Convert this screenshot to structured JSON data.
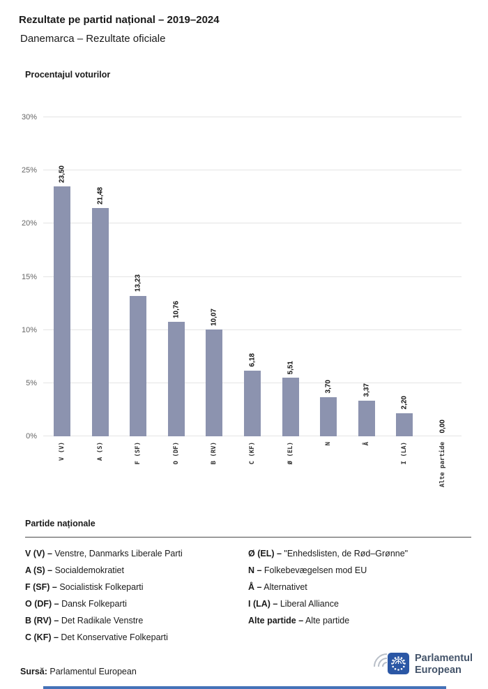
{
  "header": {
    "title": "Rezultate pe partid național – 2019–2024",
    "subtitle": "Danemarca – Rezultate oficiale"
  },
  "chart": {
    "heading": "Procentajul voturilor"
  },
  "chart_data": {
    "type": "bar",
    "title": "Procentajul voturilor",
    "categories": [
      "V (V)",
      "A (S)",
      "F (SF)",
      "O (DF)",
      "B (RV)",
      "C (KF)",
      "Ø (EL)",
      "N",
      "Å",
      "I (LA)",
      "Alte partide"
    ],
    "values": [
      23.5,
      21.48,
      13.23,
      10.76,
      10.07,
      6.18,
      5.51,
      3.7,
      3.37,
      2.2,
      0.0
    ],
    "value_labels": [
      "23,50",
      "21,48",
      "13,23",
      "10,76",
      "10,07",
      "6,18",
      "5,51",
      "3,70",
      "3,37",
      "2,20",
      "0,00"
    ],
    "ylim": [
      0,
      30
    ],
    "ytick_step": 5,
    "ytick_labels": [
      "0%",
      "5%",
      "10%",
      "15%",
      "20%",
      "25%",
      "30%"
    ],
    "bar_color": "#8c93af",
    "grid": true,
    "legend_position": "none"
  },
  "legend": {
    "heading": "Partide naționale",
    "separator": "–",
    "columns": [
      [
        {
          "code": "V (V)",
          "name": "Venstre, Danmarks Liberale Parti"
        },
        {
          "code": "A (S)",
          "name": "Socialdemokratiet"
        },
        {
          "code": "F (SF)",
          "name": "Socialistisk Folkeparti"
        },
        {
          "code": "O (DF)",
          "name": "Dansk Folkeparti"
        },
        {
          "code": "B (RV)",
          "name": "Det Radikale Venstre"
        },
        {
          "code": "C (KF)",
          "name": "Det Konservative Folkeparti"
        }
      ],
      [
        {
          "code": "Ø (EL)",
          "name": "\"Enhedslisten, de Rød–Grønne\""
        },
        {
          "code": "N",
          "name": "Folkebevægelsen mod EU"
        },
        {
          "code": "Å",
          "name": "Alternativet"
        },
        {
          "code": "I (LA)",
          "name": "Liberal Alliance"
        },
        {
          "code": "Alte partide",
          "name": "Alte partide"
        }
      ]
    ]
  },
  "footer": {
    "source_label": "Sursă:",
    "source_name": "Parlamentul European",
    "logo_text_line1": "Parlamentul",
    "logo_text_line2": "European"
  }
}
